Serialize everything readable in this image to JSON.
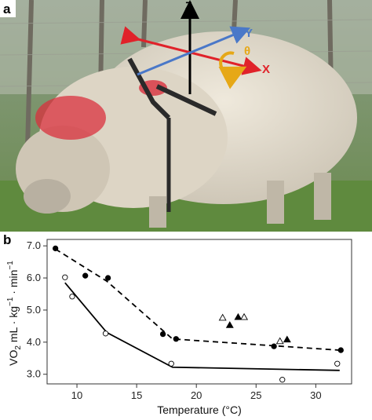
{
  "photo_panel": {
    "label": "a",
    "axes_labels": {
      "z": "Z",
      "y": "Y",
      "x": "X",
      "theta": "θ"
    },
    "colors": {
      "x_axis": "#e0222a",
      "y_axis": "#4a78c8",
      "z_axis": "#000000",
      "theta": "#e6a817"
    }
  },
  "chart_panel": {
    "label": "b"
  },
  "chart_data": {
    "type": "scatter",
    "xlabel": "Temperature (°C)",
    "ylabel_parts": {
      "main": "VO",
      "sub": "2",
      "rest": " mL · kg",
      "sup1": "−1",
      "mid": " · min",
      "sup2": "−1"
    },
    "xlim": [
      7.5,
      33
    ],
    "ylim": [
      2.7,
      7.2
    ],
    "x_ticks": [
      "10",
      "15",
      "20",
      "25",
      "30"
    ],
    "y_ticks": [
      "3.0",
      "4.0",
      "5.0",
      "6.0",
      "7.0"
    ],
    "grid": false,
    "series": [
      {
        "marker": "filled-circle",
        "points": [
          [
            8.2,
            6.92
          ],
          [
            10.7,
            6.07
          ],
          [
            12.6,
            6.0
          ],
          [
            17.2,
            4.25
          ],
          [
            18.3,
            4.1
          ],
          [
            26.5,
            3.87
          ],
          [
            32.1,
            3.75
          ]
        ],
        "fit": {
          "style": "dashed",
          "points": [
            [
              8.2,
              6.9
            ],
            [
              12.5,
              5.9
            ],
            [
              18.0,
              4.1
            ],
            [
              32.0,
              3.75
            ]
          ]
        }
      },
      {
        "marker": "open-circle",
        "points": [
          [
            9.0,
            6.02
          ],
          [
            9.6,
            5.42
          ],
          [
            12.4,
            4.27
          ],
          [
            17.9,
            3.33
          ],
          [
            27.2,
            2.83
          ],
          [
            31.8,
            3.33
          ]
        ],
        "fit": {
          "style": "solid",
          "points": [
            [
              9.0,
              5.85
            ],
            [
              12.5,
              4.3
            ],
            [
              18.0,
              3.22
            ],
            [
              32.0,
              3.12
            ]
          ]
        }
      },
      {
        "marker": "filled-triangle",
        "points": [
          [
            22.8,
            4.53
          ],
          [
            23.5,
            4.78
          ],
          [
            27.6,
            4.08
          ]
        ]
      },
      {
        "marker": "open-triangle",
        "points": [
          [
            22.2,
            4.76
          ],
          [
            24.0,
            4.78
          ],
          [
            27.0,
            4.03
          ]
        ]
      }
    ]
  }
}
